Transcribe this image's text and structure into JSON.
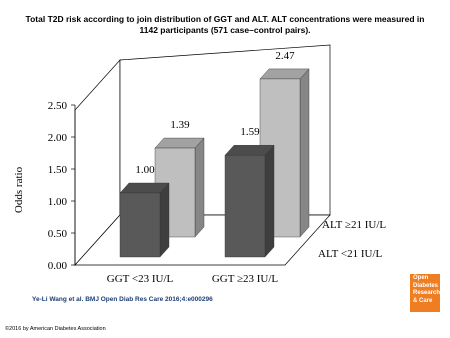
{
  "chart_data": {
    "type": "bar3d",
    "title": "Total T2D risk according to join distribution of GGT and ALT. ALT concentrations were measured in 1142 participants (571 case–control pairs).",
    "ylabel": "Odds ratio",
    "categories": [
      "GGT <23 IU/L",
      "GGT ≥23 IU/L"
    ],
    "series": [
      {
        "name": "ALT <21 IU/L",
        "color": "#595959",
        "values": [
          1.0,
          1.59
        ],
        "value_labels": [
          "1.00",
          "1.59"
        ]
      },
      {
        "name": "ALT ≥21 IU/L",
        "color": "#bfbfbf",
        "values": [
          1.39,
          2.47
        ],
        "value_labels": [
          "1.39",
          "2.47"
        ]
      }
    ],
    "ylim": [
      0,
      2.5
    ],
    "yticks": [
      {
        "value": 0,
        "label": "0.00"
      },
      {
        "value": 0.5,
        "label": "0.50"
      },
      {
        "value": 1,
        "label": "1.00"
      },
      {
        "value": 1.5,
        "label": "1.50"
      },
      {
        "value": 2,
        "label": "2.00"
      },
      {
        "value": 2.5,
        "label": "2.50"
      }
    ],
    "grid": false
  },
  "source": "Ye-Li Wang et al. BMJ Open Diab Res Care 2016;4:e000296",
  "copyright": "©2016 by American Diabetes Association",
  "logo": "Open Diabetes Research & Care"
}
